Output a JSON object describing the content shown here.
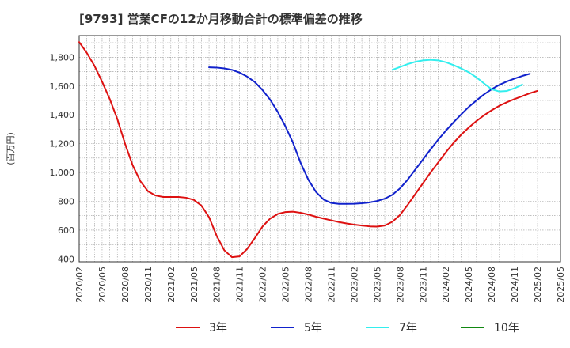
{
  "chart_data": {
    "type": "line",
    "title": "[9793]  営業CFの12か月移動合計の標準偏差の推移",
    "ylabel": "(百万円)",
    "xlabel": "",
    "ylim": [
      380,
      1950
    ],
    "yticks": [
      400,
      600,
      800,
      1000,
      1200,
      1400,
      1600,
      1800
    ],
    "ytick_labels": [
      "400",
      "600",
      "800",
      "1,000",
      "1,200",
      "1,400",
      "1,600",
      "1,800"
    ],
    "xticks": [
      "2020/02",
      "2020/05",
      "2020/08",
      "2020/11",
      "2021/02",
      "2021/05",
      "2021/08",
      "2021/11",
      "2022/02",
      "2022/05",
      "2022/08",
      "2022/11",
      "2023/02",
      "2023/05",
      "2023/08",
      "2023/11",
      "2024/02",
      "2024/05",
      "2024/08",
      "2024/11",
      "2025/02",
      "2025/05"
    ],
    "x_start": "2020/02",
    "x_step": "1 month",
    "grid": true,
    "legend_position": "bottom",
    "series": [
      {
        "name": "3年",
        "color": "#dd1111",
        "start": "2020/02",
        "values": [
          1905,
          1830,
          1740,
          1630,
          1510,
          1370,
          1200,
          1050,
          940,
          870,
          840,
          830,
          830,
          830,
          825,
          810,
          770,
          690,
          560,
          460,
          412,
          418,
          470,
          545,
          625,
          680,
          712,
          725,
          728,
          720,
          708,
          693,
          680,
          668,
          656,
          646,
          638,
          632,
          626,
          624,
          632,
          658,
          705,
          775,
          850,
          925,
          1000,
          1070,
          1140,
          1205,
          1262,
          1312,
          1357,
          1397,
          1432,
          1463,
          1488,
          1510,
          1530,
          1550,
          1567
        ]
      },
      {
        "name": "5年",
        "color": "#1122cc",
        "start": "2021/07",
        "values": [
          1730,
          1728,
          1722,
          1712,
          1693,
          1665,
          1627,
          1572,
          1505,
          1420,
          1320,
          1205,
          1065,
          950,
          865,
          812,
          788,
          782,
          782,
          783,
          786,
          792,
          802,
          818,
          845,
          890,
          950,
          1020,
          1090,
          1160,
          1228,
          1290,
          1348,
          1403,
          1455,
          1500,
          1542,
          1578,
          1608,
          1632,
          1652,
          1670,
          1685
        ]
      },
      {
        "name": "7年",
        "color": "#33eeee",
        "start": "2023/07",
        "values": [
          1712,
          1732,
          1752,
          1768,
          1778,
          1782,
          1778,
          1765,
          1745,
          1722,
          1695,
          1660,
          1618,
          1577,
          1562,
          1566,
          1585,
          1610
        ]
      },
      {
        "name": "10年",
        "color": "#118811",
        "start": "2025/02",
        "values": []
      }
    ]
  }
}
